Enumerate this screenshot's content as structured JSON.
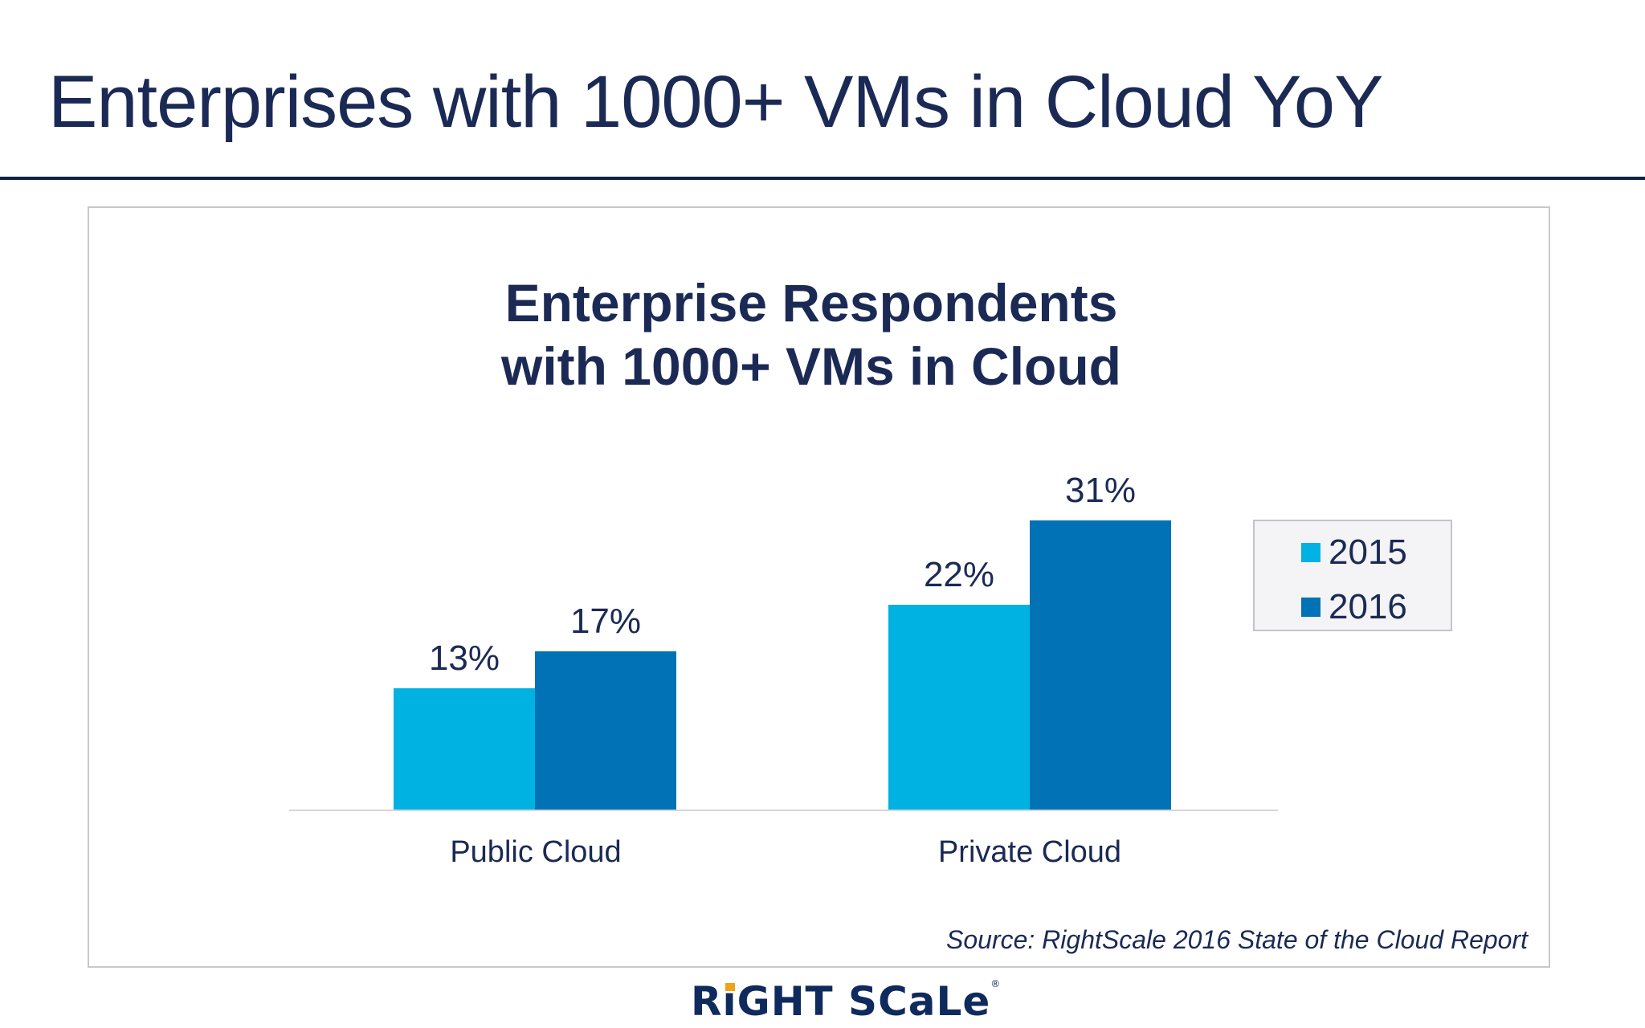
{
  "page": {
    "title": "Enterprises with 1000+ VMs in Cloud YoY",
    "source": "Source: RightScale 2016 State of the Cloud Report",
    "logo": {
      "text_before_i": "R",
      "i": "i",
      "text_after_i": "GHT SCaLe",
      "registered": "®"
    }
  },
  "colors": {
    "series_2015": "#00b2e2",
    "series_2016": "#0072b5",
    "text": "#1b2a55",
    "rule": "#0f2340",
    "logo_accent": "#f0a21c"
  },
  "chart_data": {
    "type": "bar",
    "title": "Enterprise Respondents with 1000+ VMs in Cloud",
    "title_lines": [
      "Enterprise Respondents",
      "with 1000+ VMs in Cloud"
    ],
    "categories": [
      "Public Cloud",
      "Private Cloud"
    ],
    "series": [
      {
        "name": "2015",
        "values": [
          13,
          22
        ],
        "labels": [
          "13%",
          "22%"
        ],
        "color": "#00b2e2"
      },
      {
        "name": "2016",
        "values": [
          17,
          31
        ],
        "labels": [
          "17%",
          "31%"
        ],
        "color": "#0072b5"
      }
    ],
    "xlabel": "",
    "ylabel": "",
    "unit": "%",
    "grid": false,
    "y_axis_visible": false,
    "legend_position": "right",
    "source": "Source: RightScale 2016 State of the Cloud Report"
  }
}
